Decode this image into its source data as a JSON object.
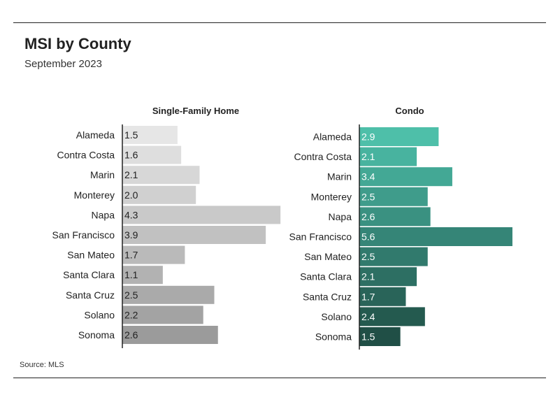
{
  "title": "MSI by County",
  "subtitle": "September 2023",
  "source": "Source: MLS",
  "chart_data": [
    {
      "type": "bar",
      "orientation": "horizontal",
      "title": "Single-Family Home",
      "categories": [
        "Alameda",
        "Contra Costa",
        "Marin",
        "Monterey",
        "Napa",
        "San Francisco",
        "San Mateo",
        "Santa Clara",
        "Santa Cruz",
        "Solano",
        "Sonoma"
      ],
      "values": [
        1.5,
        1.6,
        2.1,
        2.0,
        4.3,
        3.9,
        1.7,
        1.1,
        2.5,
        2.2,
        2.6
      ],
      "colors": [
        "#e6e6e6",
        "#dedede",
        "#d7d7d7",
        "#d0d0d0",
        "#c9c9c9",
        "#c1c1c1",
        "#bababa",
        "#b2b2b2",
        "#aaaaaa",
        "#a3a3a3",
        "#9b9b9b"
      ]
    },
    {
      "type": "bar",
      "orientation": "horizontal",
      "title": "Condo",
      "categories": [
        "Alameda",
        "Contra Costa",
        "Marin",
        "Monterey",
        "Napa",
        "San Francisco",
        "San Mateo",
        "Santa Clara",
        "Santa Cruz",
        "Solano",
        "Sonoma"
      ],
      "values": [
        2.9,
        2.1,
        3.4,
        2.5,
        2.6,
        5.6,
        2.5,
        2.1,
        1.7,
        2.4,
        1.5
      ],
      "colors": [
        "#4ebfa9",
        "#48b39f",
        "#43a895",
        "#3f9c8b",
        "#3a9181",
        "#358577",
        "#317a6d",
        "#2d6f63",
        "#296459",
        "#245a4f",
        "#204f46"
      ]
    }
  ]
}
